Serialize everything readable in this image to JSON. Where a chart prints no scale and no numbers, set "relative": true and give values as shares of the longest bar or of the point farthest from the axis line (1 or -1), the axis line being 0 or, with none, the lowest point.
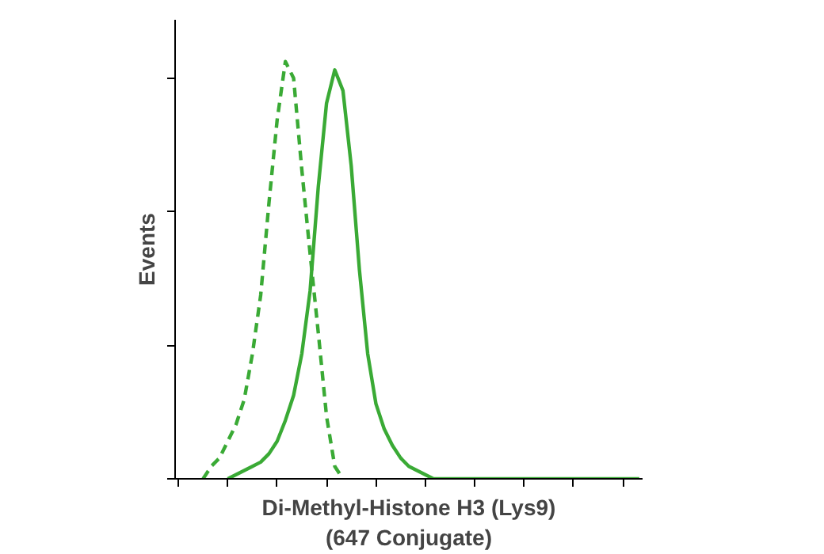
{
  "chart_data": {
    "type": "line",
    "relative": true,
    "xlabel": "Di-Methyl-Histone H3 (Lys9)\n(647 Conjugate)",
    "ylabel": "Events",
    "grid": false,
    "marker": "none",
    "categories": [
      null,
      null,
      null,
      null,
      null,
      null,
      null,
      null,
      null,
      null,
      null,
      null,
      null,
      null,
      null,
      null,
      null,
      null,
      null,
      null,
      null,
      null,
      null,
      null,
      null,
      null,
      null,
      null,
      null,
      null,
      null,
      null,
      null,
      null,
      null,
      null,
      null,
      null,
      null,
      null,
      null,
      null,
      null,
      null,
      null,
      null,
      null,
      null,
      null,
      null,
      null,
      null,
      null,
      null,
      null,
      null,
      null
    ],
    "series": [
      {
        "color": "#3aaa35",
        "line_style": "dashed",
        "values": [
          null,
          null,
          null,
          0,
          0.03,
          0.05,
          0.09,
          0.13,
          0.19,
          0.3,
          0.44,
          0.66,
          0.86,
          1.0,
          0.96,
          0.74,
          0.54,
          0.35,
          0.15,
          0.03,
          0,
          null,
          null,
          null,
          null,
          null,
          null,
          null,
          null,
          null,
          null,
          null,
          null,
          null,
          null,
          null,
          null,
          null,
          null,
          null,
          null,
          null,
          null,
          null,
          null,
          null,
          null,
          null,
          null,
          null,
          null,
          null,
          null,
          null,
          null,
          null,
          null
        ]
      },
      {
        "color": "#3aaa35",
        "line_style": "solid",
        "values": [
          null,
          null,
          null,
          null,
          null,
          null,
          0,
          0.01,
          0.02,
          0.03,
          0.04,
          0.06,
          0.09,
          0.14,
          0.2,
          0.3,
          0.45,
          0.7,
          0.9,
          0.98,
          0.93,
          0.75,
          0.5,
          0.3,
          0.18,
          0.12,
          0.08,
          0.05,
          0.03,
          0.02,
          0.01,
          0,
          0,
          0,
          0,
          0,
          0,
          0,
          0,
          0,
          0,
          0,
          0,
          0,
          0,
          0,
          0,
          0,
          0,
          0,
          0,
          0,
          0,
          0,
          0,
          0,
          0
        ]
      }
    ]
  }
}
